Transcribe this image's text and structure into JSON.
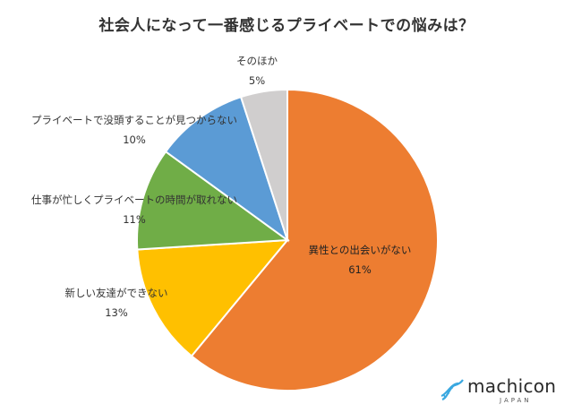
{
  "logo": {
    "text": "machicon",
    "sub": "JAPAN",
    "color": "#3aa8e0"
  },
  "chart_data": {
    "type": "pie",
    "title": "社会人になって一番感じるプライベートでの悩みは？",
    "start": "12 o'clock",
    "direction": "clockwise",
    "slices": [
      {
        "label": "異性との出会いがない",
        "pct_label": "61%",
        "value": 61,
        "color": "#ED7D31"
      },
      {
        "label": "新しい友達ができない",
        "pct_label": "13%",
        "value": 13,
        "color": "#FFC000"
      },
      {
        "label": "仕事が忙しくプライベートの時間が取れない",
        "pct_label": "11%",
        "value": 11,
        "color": "#70AD47"
      },
      {
        "label": "プライベートで没頭することが見つからない",
        "pct_label": "10%",
        "value": 10,
        "color": "#5B9BD5"
      },
      {
        "label": "そのほか",
        "pct_label": "5%",
        "value": 5,
        "color": "#D0CECE"
      }
    ]
  }
}
